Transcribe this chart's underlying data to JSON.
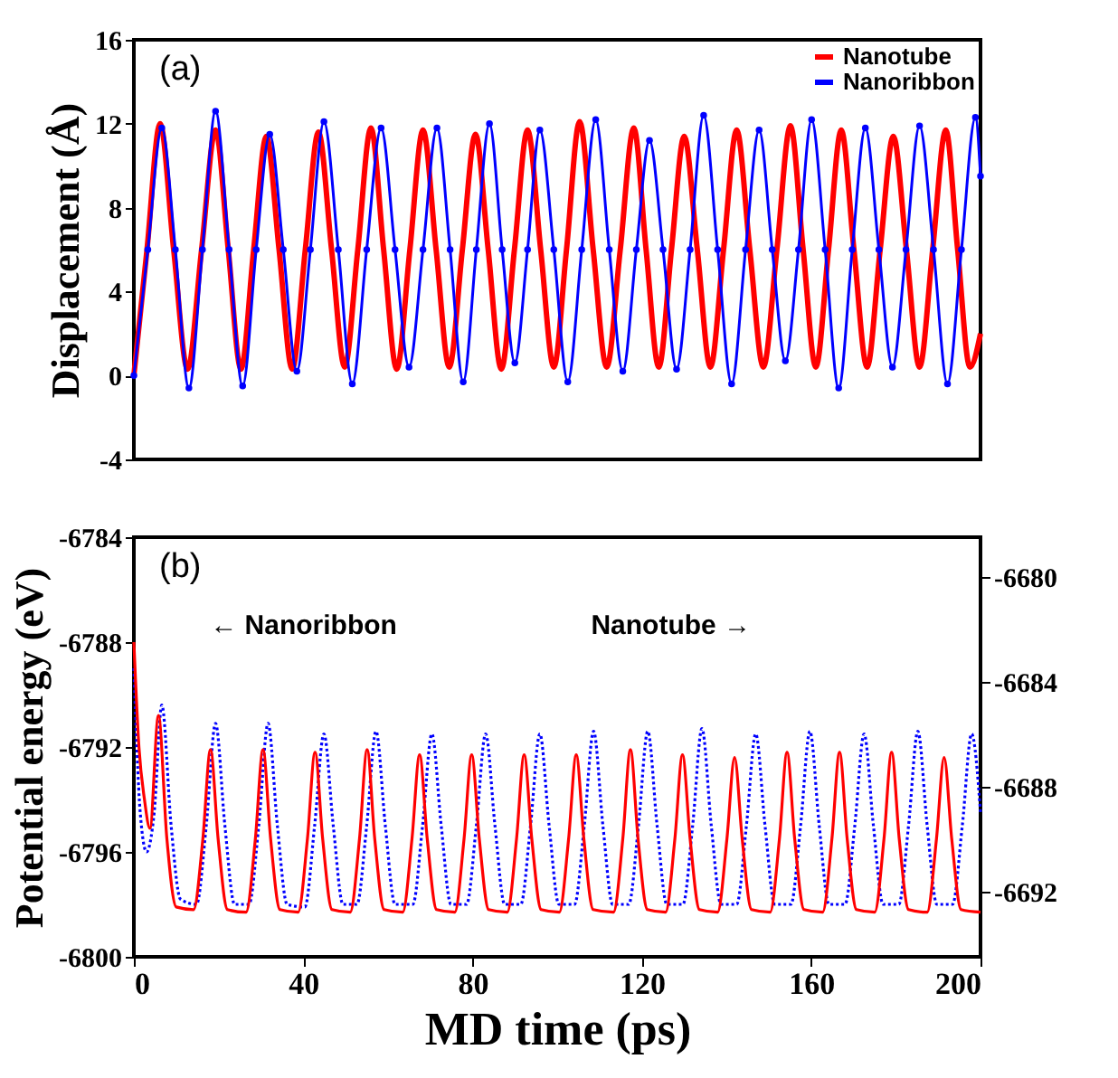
{
  "chart_data": [
    {
      "type": "line",
      "ylabel": "Displacement (Å)",
      "xlim": [
        0,
        200
      ],
      "ylim": [
        -4,
        16
      ],
      "yticks": [
        -4,
        0,
        4,
        8,
        12,
        16
      ],
      "tick_labels": "y",
      "grid": false,
      "legend": "top right",
      "annotations": [
        "(a)"
      ],
      "series": [
        {
          "name": "Nanotube",
          "color": "#ff0000",
          "line_style": "solid",
          "x": [
            0,
            3.1,
            6.2,
            9.4,
            12.7,
            16.0,
            19.3,
            22.3,
            25.3,
            28.3,
            31.3,
            34.3,
            37.4,
            40.5,
            43.6,
            46.7,
            49.8,
            52.9,
            56.0,
            59.0,
            62.1,
            65.2,
            68.3,
            71.4,
            74.5,
            77.6,
            80.7,
            83.7,
            86.8,
            89.9,
            93.0,
            96.1,
            99.2,
            102.2,
            105.3,
            108.5,
            111.7,
            114.9,
            118.1,
            121.0,
            124.0,
            127.0,
            130.0,
            133.1,
            136.2,
            139.3,
            142.4,
            145.5,
            148.7,
            151.9,
            155.1,
            158.1,
            161.1,
            164.1,
            167.1,
            170.1,
            173.2,
            176.3,
            179.4,
            182.5,
            185.6,
            188.7,
            191.8,
            194.6,
            197.5,
            200
          ],
          "values": [
            0,
            6,
            12.0,
            6,
            0.3,
            6,
            11.7,
            6,
            0.3,
            6,
            11.4,
            6,
            0.3,
            6,
            11.6,
            6,
            0.4,
            6,
            11.8,
            6,
            0.3,
            6,
            11.7,
            6,
            0.4,
            6,
            11.5,
            6,
            0.3,
            6,
            11.7,
            6,
            0.4,
            6,
            12.1,
            6,
            0.4,
            6,
            11.8,
            6,
            0.4,
            6,
            11.4,
            6,
            0.4,
            6,
            11.7,
            6,
            0.4,
            6,
            11.9,
            6,
            0.4,
            6,
            11.7,
            6,
            0.4,
            6,
            11.4,
            6,
            0.4,
            6,
            11.7,
            6,
            0.4,
            2.0
          ]
        },
        {
          "name": "Nanoribbon",
          "color": "#0000ff",
          "line_style": "solid",
          "marker": "circle",
          "x": [
            0,
            3.3,
            6.6,
            9.8,
            13.0,
            16.2,
            19.3,
            22.5,
            25.7,
            28.9,
            32.1,
            35.3,
            38.5,
            41.7,
            44.9,
            48.3,
            51.6,
            55.0,
            58.4,
            61.7,
            65.0,
            68.3,
            71.6,
            74.7,
            77.8,
            80.9,
            84.0,
            87.0,
            90.0,
            93.0,
            95.9,
            99.2,
            102.5,
            105.8,
            109.1,
            112.3,
            115.5,
            118.7,
            121.8,
            125.0,
            128.2,
            131.4,
            134.6,
            137.9,
            141.2,
            144.5,
            147.7,
            150.8,
            153.9,
            157.0,
            160.1,
            163.3,
            166.5,
            169.7,
            172.8,
            176.0,
            179.2,
            182.4,
            185.6,
            188.9,
            192.2,
            195.5,
            198.8,
            200
          ],
          "values": [
            0,
            6,
            11.8,
            6,
            -0.6,
            6,
            12.6,
            6,
            -0.5,
            6,
            11.5,
            6,
            0.2,
            6,
            12.1,
            6,
            -0.4,
            6,
            11.8,
            6,
            0.4,
            6,
            11.8,
            6,
            -0.3,
            6,
            12.0,
            6,
            0.6,
            6,
            11.7,
            6,
            -0.3,
            6,
            12.2,
            6,
            0.2,
            6,
            11.2,
            6,
            0.3,
            6,
            12.4,
            6,
            -0.4,
            6,
            11.7,
            6,
            0.7,
            6,
            12.2,
            6,
            -0.6,
            6,
            11.8,
            6,
            0.4,
            6,
            11.9,
            6,
            -0.4,
            6,
            12.3,
            9.5
          ]
        }
      ]
    },
    {
      "type": "line",
      "xlabel": "MD time (ps)",
      "ylabel": "Potential energy (eV)",
      "xlim": [
        0,
        200
      ],
      "xticks": [
        0,
        40,
        80,
        120,
        160,
        200
      ],
      "ylim": [
        -6800,
        -6784
      ],
      "yticks": [
        -6800,
        -6796,
        -6792,
        -6788,
        -6784
      ],
      "y2lim": [
        -6694.5,
        -6678.5
      ],
      "y2ticks": [
        -6692,
        -6688,
        -6684,
        -6680
      ],
      "grid": false,
      "annotations": [
        "(b)",
        "← Nanoribbon",
        "Nanotube →"
      ],
      "series": [
        {
          "color": "#0000ff",
          "line_style": "dotted",
          "x": [
            0,
            1.5,
            3.0,
            4.8,
            6.6,
            8.8,
            11.0,
            14.8,
            17.1,
            19.3,
            21.5,
            23.8,
            27.2,
            29.5,
            31.7,
            33.9,
            36.2,
            40.4,
            42.7,
            44.9,
            47.1,
            49.4,
            52.7,
            55.0,
            57.2,
            59.4,
            61.7,
            65.9,
            68.2,
            70.4,
            72.6,
            74.9,
            78.6,
            80.9,
            83.1,
            85.3,
            87.6,
            91.4,
            93.7,
            95.9,
            98.1,
            100.4,
            104.1,
            106.4,
            108.6,
            110.8,
            113.1,
            116.9,
            119.2,
            121.4,
            123.6,
            125.9,
            129.7,
            132.0,
            134.2,
            136.4,
            138.7,
            142.4,
            144.7,
            146.9,
            149.1,
            151.4,
            155.2,
            157.5,
            159.7,
            161.9,
            164.2,
            168.0,
            170.3,
            172.5,
            174.7,
            177.0,
            180.7,
            183.0,
            185.2,
            187.4,
            189.7,
            193.4,
            195.7,
            197.9,
            200.0
          ],
          "values": [
            -6789.0,
            -6794.5,
            -6796.0,
            -6794.5,
            -6790.4,
            -6795.0,
            -6797.8,
            -6798.0,
            -6795.0,
            -6791.1,
            -6795.0,
            -6798.0,
            -6798.0,
            -6795.0,
            -6791.1,
            -6795.0,
            -6798.0,
            -6798.1,
            -6795.0,
            -6791.5,
            -6795.0,
            -6798.0,
            -6798.0,
            -6795.0,
            -6791.4,
            -6795.0,
            -6798.0,
            -6798.0,
            -6795.0,
            -6791.5,
            -6795.0,
            -6798.0,
            -6798.0,
            -6795.0,
            -6791.5,
            -6795.0,
            -6798.0,
            -6798.0,
            -6795.0,
            -6791.5,
            -6795.0,
            -6798.0,
            -6798.0,
            -6795.0,
            -6791.4,
            -6795.0,
            -6798.0,
            -6798.0,
            -6795.0,
            -6791.4,
            -6795.0,
            -6798.0,
            -6798.0,
            -6795.0,
            -6791.3,
            -6795.0,
            -6798.0,
            -6798.0,
            -6795.0,
            -6791.5,
            -6795.0,
            -6798.0,
            -6798.0,
            -6795.0,
            -6791.4,
            -6795.0,
            -6798.0,
            -6798.0,
            -6795.0,
            -6791.5,
            -6795.0,
            -6798.0,
            -6798.0,
            -6795.0,
            -6791.4,
            -6795.0,
            -6798.0,
            -6798.0,
            -6795.0,
            -6791.5,
            -6794.5
          ]
        },
        {
          "color": "#ff0000",
          "line_style": "solid",
          "axis": "y2",
          "x": [
            0,
            1.2,
            2.5,
            3.8,
            5.8,
            7.8,
            10.0,
            14.1,
            16.3,
            18.1,
            19.9,
            22.1,
            26.5,
            28.7,
            30.5,
            32.3,
            34.5,
            38.8,
            41.0,
            42.8,
            44.6,
            46.8,
            51.1,
            53.3,
            55.1,
            56.9,
            59.1,
            63.5,
            65.7,
            67.5,
            69.3,
            71.5,
            75.8,
            78.0,
            79.8,
            81.6,
            83.8,
            88.2,
            90.4,
            92.2,
            94.0,
            96.2,
            100.5,
            102.7,
            104.5,
            106.3,
            108.5,
            113.3,
            115.5,
            117.3,
            119.1,
            121.3,
            125.6,
            127.8,
            129.6,
            131.4,
            133.6,
            137.9,
            140.1,
            141.9,
            143.7,
            145.9,
            150.3,
            152.5,
            154.3,
            156.1,
            158.3,
            162.7,
            164.9,
            166.7,
            168.5,
            170.7,
            175.0,
            177.2,
            179.0,
            180.8,
            183.0,
            187.4,
            189.6,
            191.4,
            193.2,
            195.4,
            200.0
          ],
          "values": [
            -6682.5,
            -6686.5,
            -6688.5,
            -6689.6,
            -6685.3,
            -6690,
            -6692.6,
            -6692.7,
            -6690,
            -6686.6,
            -6690,
            -6692.7,
            -6692.8,
            -6690,
            -6686.6,
            -6690,
            -6692.7,
            -6692.8,
            -6690,
            -6686.7,
            -6690,
            -6692.7,
            -6692.8,
            -6690,
            -6686.6,
            -6690,
            -6692.7,
            -6692.8,
            -6690,
            -6686.8,
            -6690,
            -6692.7,
            -6692.8,
            -6690,
            -6686.8,
            -6690,
            -6692.7,
            -6692.8,
            -6690,
            -6686.8,
            -6690,
            -6692.7,
            -6692.8,
            -6690,
            -6686.8,
            -6690,
            -6692.7,
            -6692.8,
            -6690,
            -6686.6,
            -6690,
            -6692.7,
            -6692.8,
            -6690,
            -6686.8,
            -6690,
            -6692.7,
            -6692.8,
            -6690,
            -6686.9,
            -6690,
            -6692.7,
            -6692.8,
            -6690,
            -6686.7,
            -6690,
            -6692.7,
            -6692.8,
            -6690,
            -6686.7,
            -6690,
            -6692.7,
            -6692.8,
            -6690,
            -6686.7,
            -6690,
            -6692.7,
            -6692.8,
            -6690,
            -6686.9,
            -6690,
            -6692.7,
            -6692.8
          ]
        }
      ]
    }
  ]
}
